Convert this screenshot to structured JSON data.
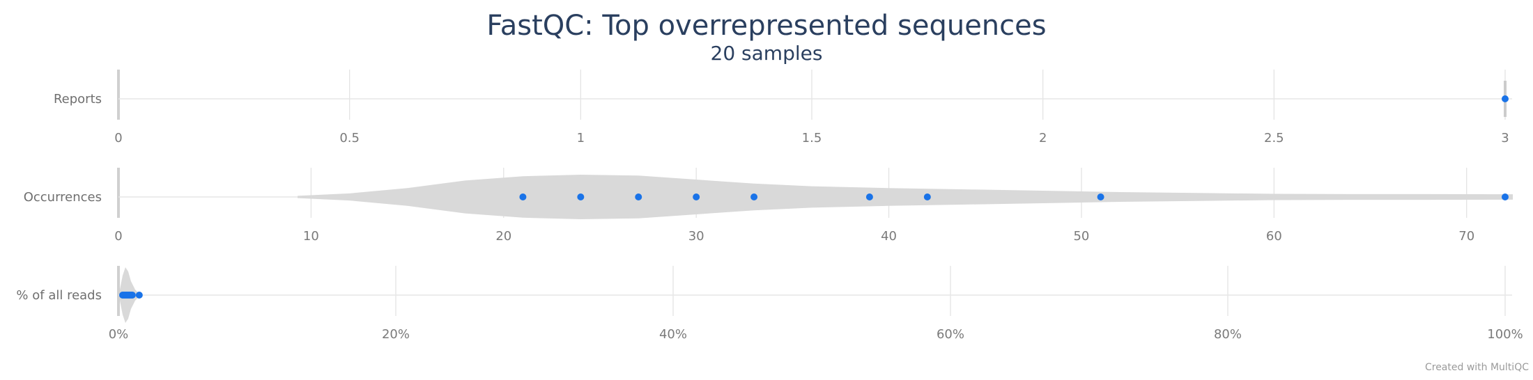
{
  "chart_data": {
    "type": "violin",
    "title": "FastQC: Top overrepresented sequences",
    "subtitle": "20 samples",
    "credit": "Created with MultiQC",
    "colors": {
      "points": "#1a73e8",
      "violin": "#d9d9d9",
      "title": "#2a3f5f",
      "grid": "#e3e3e3"
    },
    "panels": [
      {
        "label": "Reports",
        "xlim": [
          0,
          3
        ],
        "ticks": [
          0,
          0.5,
          1,
          1.5,
          2,
          2.5,
          3
        ],
        "tick_labels": [
          "0",
          "0.5",
          "1",
          "1.5",
          "2",
          "2.5",
          "3"
        ],
        "points": [
          3
        ],
        "density": [
          [
            3,
            1
          ]
        ]
      },
      {
        "label": "Occurrences",
        "xlim": [
          0,
          72
        ],
        "ticks": [
          0,
          10,
          20,
          30,
          40,
          50,
          60,
          70
        ],
        "tick_labels": [
          "0",
          "10",
          "20",
          "30",
          "40",
          "50",
          "60",
          "70"
        ],
        "points": [
          21,
          24,
          27,
          30,
          33,
          39,
          42,
          51,
          72
        ],
        "density": [
          [
            9.3,
            0.05
          ],
          [
            12,
            0.16
          ],
          [
            15,
            0.4
          ],
          [
            18,
            0.74
          ],
          [
            21,
            0.93
          ],
          [
            24,
            1.0
          ],
          [
            27,
            0.96
          ],
          [
            30,
            0.78
          ],
          [
            33,
            0.6
          ],
          [
            36,
            0.48
          ],
          [
            40,
            0.4
          ],
          [
            44,
            0.34
          ],
          [
            48,
            0.28
          ],
          [
            52,
            0.22
          ],
          [
            56,
            0.18
          ],
          [
            60,
            0.14
          ],
          [
            64,
            0.13
          ],
          [
            68,
            0.13
          ],
          [
            72.4,
            0.12
          ]
        ]
      },
      {
        "label": "% of all reads",
        "xlim": [
          0,
          100
        ],
        "ticks": [
          0,
          20,
          40,
          60,
          80,
          100
        ],
        "tick_labels": [
          "0%",
          "20%",
          "40%",
          "60%",
          "80%",
          "100%"
        ],
        "points": [
          0.3,
          0.4,
          0.5,
          0.6,
          0.7,
          0.8,
          0.9,
          1.0,
          1.5
        ],
        "density": [
          [
            0.1,
            0.2
          ],
          [
            0.3,
            0.7
          ],
          [
            0.5,
            1.0
          ],
          [
            0.7,
            0.85
          ],
          [
            0.9,
            0.5
          ],
          [
            1.2,
            0.2
          ],
          [
            1.5,
            0.05
          ]
        ]
      }
    ]
  }
}
